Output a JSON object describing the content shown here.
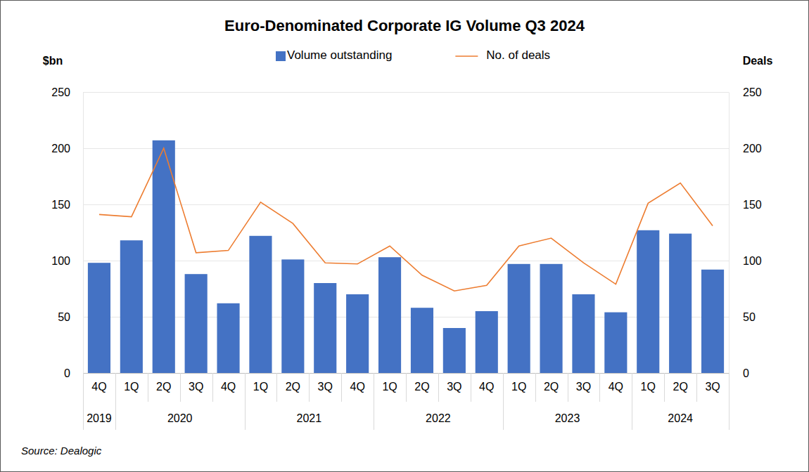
{
  "chart_data": {
    "type": "bar",
    "title": "Euro-Denominated Corporate IG Volume Q3 2024",
    "categories": [
      "4Q",
      "1Q",
      "2Q",
      "3Q",
      "4Q",
      "1Q",
      "2Q",
      "3Q",
      "4Q",
      "1Q",
      "2Q",
      "3Q",
      "4Q",
      "1Q",
      "2Q",
      "3Q",
      "4Q",
      "1Q",
      "2Q",
      "3Q"
    ],
    "category_years": [
      "2019",
      "2020",
      "2020",
      "2020",
      "2020",
      "2021",
      "2021",
      "2021",
      "2021",
      "2022",
      "2022",
      "2022",
      "2022",
      "2023",
      "2023",
      "2023",
      "2023",
      "2024",
      "2024",
      "2024"
    ],
    "y_label": "$bn",
    "y2_label": "Deals",
    "ylim": [
      0,
      250
    ],
    "yticks": [
      0,
      50,
      100,
      150,
      200,
      250
    ],
    "y2lim": [
      0,
      250
    ],
    "y2ticks": [
      0,
      50,
      100,
      150,
      200,
      250
    ],
    "grid": true,
    "legend": "top",
    "series": [
      {
        "name": "Volume outstanding",
        "type": "bar",
        "color": "#4472c4",
        "values": [
          98,
          118,
          207,
          88,
          62,
          122,
          101,
          80,
          70,
          103,
          58,
          40,
          55,
          97,
          97,
          70,
          54,
          127,
          124,
          92
        ]
      },
      {
        "name": "No. of deals",
        "type": "line",
        "color": "#ed7d31",
        "axis": "y2",
        "values": [
          141,
          139,
          200,
          107,
          109,
          152,
          133,
          98,
          97,
          113,
          87,
          73,
          78,
          113,
          120,
          98,
          79,
          151,
          169,
          131
        ]
      }
    ],
    "source": "Source: Dealogic"
  }
}
